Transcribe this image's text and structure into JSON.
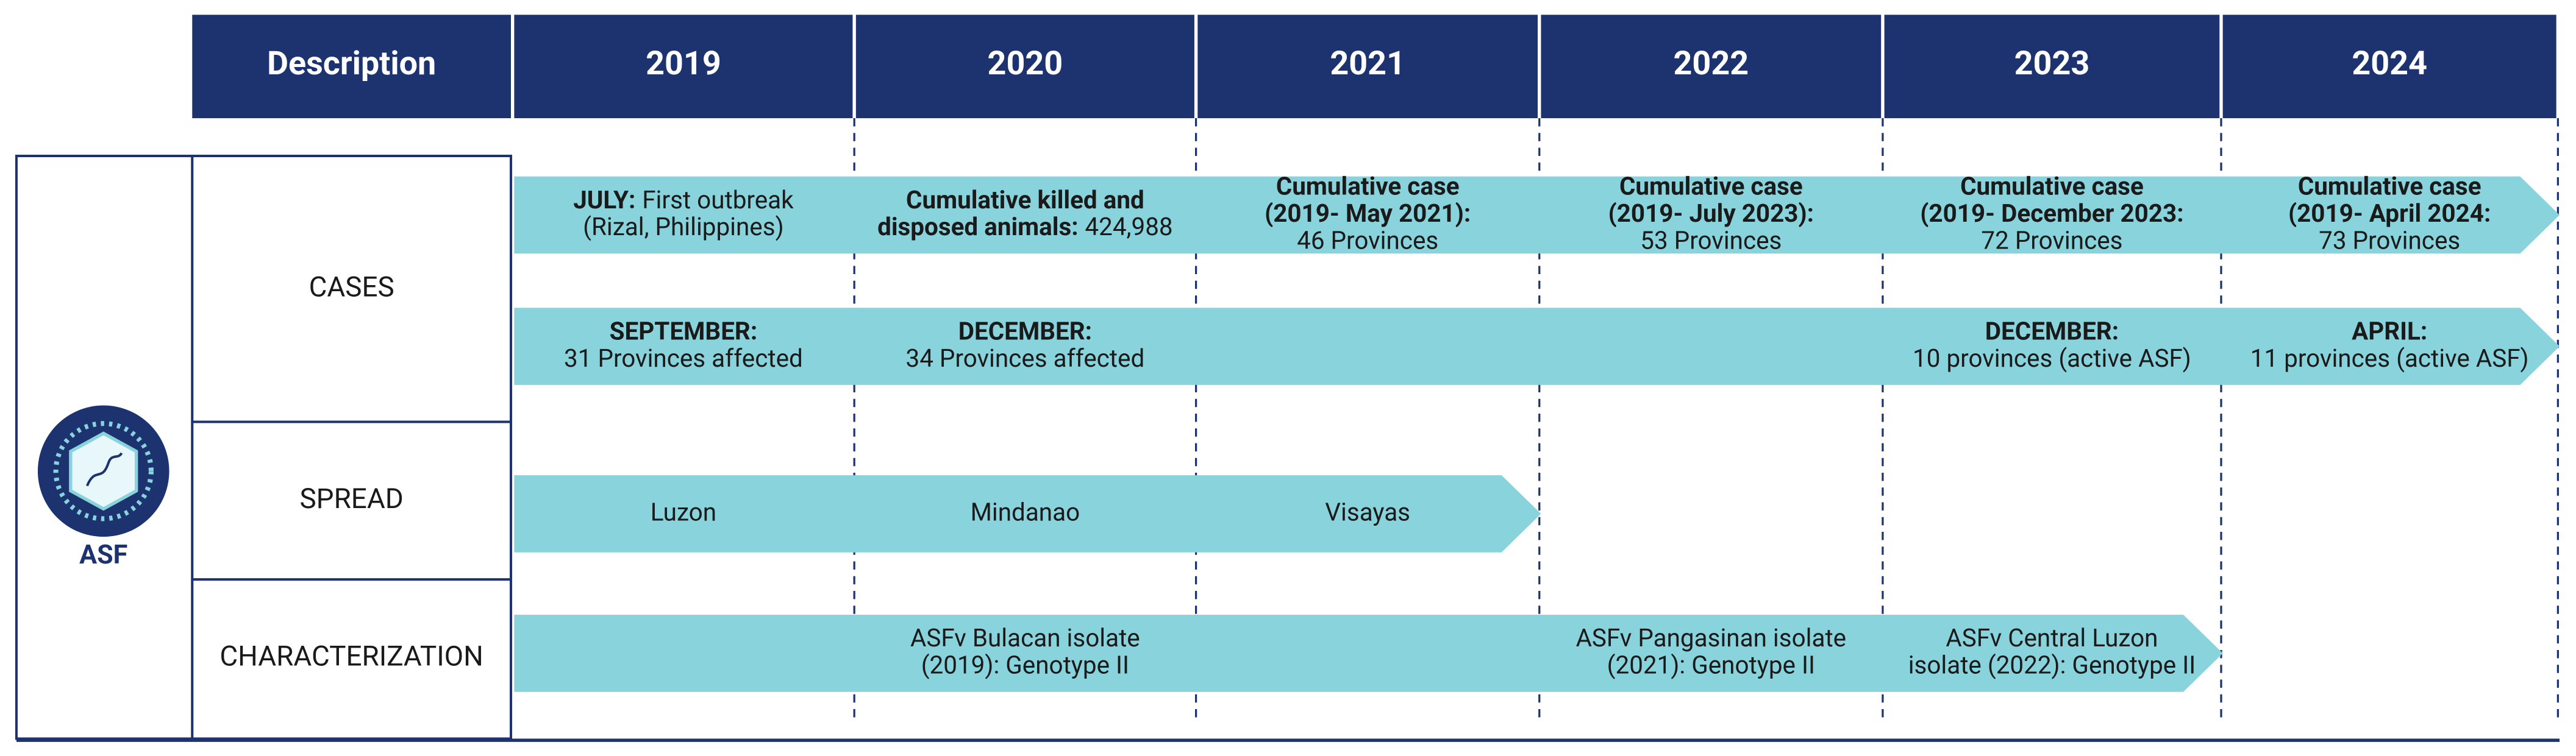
{
  "header": {
    "columns": [
      "Description",
      "2019",
      "2020",
      "2021",
      "2022",
      "2023",
      "2024"
    ]
  },
  "icon_label": "ASF",
  "rows": [
    {
      "label": "CASES",
      "bars": [
        {
          "items": [
            [
              {
                "b": "JULY:",
                "t": "First outbreak"
              },
              {
                "t": "(Rizal, Philippines)"
              }
            ],
            [
              {
                "b": "Cumulative killed and"
              },
              {
                "b": "disposed animals:",
                "t": "424,988"
              }
            ],
            [
              {
                "b": "Cumulative case"
              },
              {
                "b": "(2019- May 2021):"
              },
              {
                "t": "46 Provinces"
              }
            ],
            [
              {
                "b": "Cumulative case"
              },
              {
                "b": "(2019- July 2023):"
              },
              {
                "t": "53 Provinces"
              }
            ],
            [
              {
                "b": "Cumulative case"
              },
              {
                "b": "(2019- December 2023:"
              },
              {
                "t": "72 Provinces"
              }
            ],
            [
              {
                "b": "Cumulative case"
              },
              {
                "b": "(2019- April 2024:"
              },
              {
                "t": "73 Provinces"
              }
            ]
          ]
        },
        {
          "items": [
            [
              {
                "b": "SEPTEMBER:"
              },
              {
                "t": "31 Provinces affected"
              }
            ],
            [
              {
                "b": "DECEMBER:"
              },
              {
                "t": "34 Provinces affected"
              }
            ],
            null,
            null,
            [
              {
                "b": "DECEMBER:"
              },
              {
                "t": "10 provinces (active ASF)"
              }
            ],
            [
              {
                "b": "APRIL:"
              },
              {
                "t": "11 provinces (active ASF)"
              }
            ]
          ]
        }
      ]
    },
    {
      "label": "SPREAD",
      "bars": [
        {
          "items": [
            [
              {
                "t": "Luzon"
              }
            ],
            [
              {
                "t": "Mindanao"
              }
            ],
            [
              {
                "t": "Visayas"
              }
            ]
          ]
        }
      ]
    },
    {
      "label": "CHARACTERIZATION",
      "bars": [
        {
          "items": [
            null,
            [
              {
                "t": "ASFv Bulacan isolate"
              },
              {
                "t": "(2019): Genotype II"
              }
            ],
            null,
            [
              {
                "t": "ASFv Pangasinan isolate"
              },
              {
                "t": "(2021): Genotype II"
              }
            ],
            [
              {
                "t": "ASFv Central Luzon"
              },
              {
                "t": "isolate (2022): Genotype II"
              }
            ]
          ]
        }
      ]
    }
  ]
}
